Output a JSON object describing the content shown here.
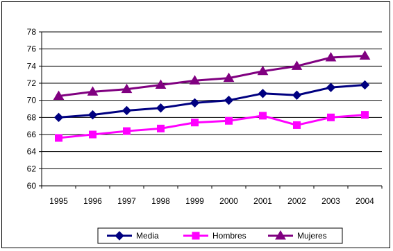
{
  "chart_data": {
    "type": "line",
    "title": "",
    "xlabel": "",
    "ylabel": "",
    "x": [
      "1995",
      "1996",
      "1997",
      "1998",
      "1999",
      "2000",
      "2001",
      "2002",
      "2003",
      "2004"
    ],
    "yticks": [
      "60",
      "62",
      "64",
      "66",
      "68",
      "70",
      "72",
      "74",
      "76",
      "78"
    ],
    "ylim": [
      60,
      78
    ],
    "grid": true,
    "legend": "bottom",
    "series": [
      {
        "name": "Media",
        "color": "#000080",
        "marker": "diamond",
        "values": [
          68.0,
          68.3,
          68.8,
          69.1,
          69.7,
          70.0,
          70.8,
          70.6,
          71.5,
          71.8
        ]
      },
      {
        "name": "Hombres",
        "color": "#FF00FF",
        "marker": "square",
        "values": [
          65.6,
          66.0,
          66.4,
          66.7,
          67.4,
          67.6,
          68.2,
          67.1,
          68.0,
          68.3
        ]
      },
      {
        "name": "Mujeres",
        "color": "#800080",
        "marker": "triangle",
        "values": [
          70.5,
          71.0,
          71.3,
          71.8,
          72.3,
          72.6,
          73.4,
          74.0,
          75.0,
          75.2
        ]
      }
    ]
  }
}
